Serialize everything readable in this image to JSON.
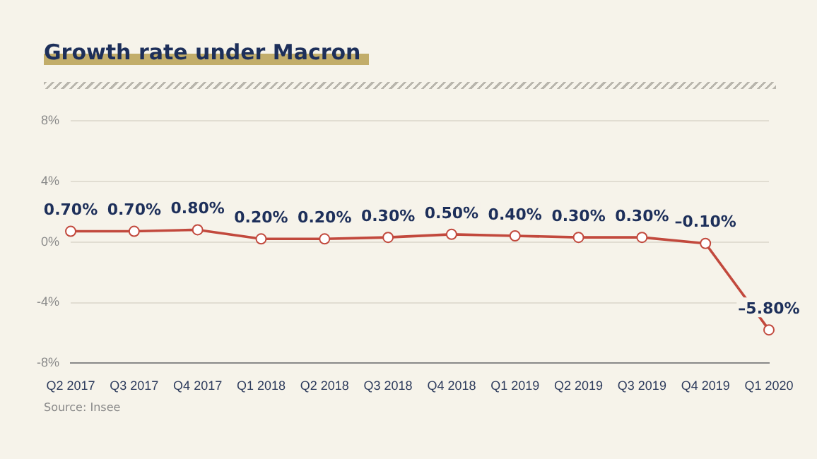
{
  "chart_data": {
    "type": "line",
    "title": "Growth rate under Macron",
    "categories": [
      "Q2 2017",
      "Q3 2017",
      "Q4 2017",
      "Q1 2018",
      "Q2 2018",
      "Q3 2018",
      "Q4 2018",
      "Q1 2019",
      "Q2 2019",
      "Q3 2019",
      "Q4 2019",
      "Q1 2020"
    ],
    "values": [
      0.7,
      0.7,
      0.8,
      0.2,
      0.2,
      0.3,
      0.5,
      0.4,
      0.3,
      0.3,
      -0.1,
      -5.8
    ],
    "value_labels": [
      "0.70%",
      "0.70%",
      "0.80%",
      "0.20%",
      "0.20%",
      "0.30%",
      "0.50%",
      "0.40%",
      "0.30%",
      "0.30%",
      "–0.10%",
      "–5.80%"
    ],
    "color": "#c2493d",
    "ylim": [
      -8,
      8
    ],
    "yticks": [
      {
        "value": -8,
        "label": "-8%"
      },
      {
        "value": -4,
        "label": "-4%"
      },
      {
        "value": 0,
        "label": "0%"
      },
      {
        "value": 4,
        "label": "4%"
      },
      {
        "value": 8,
        "label": "8%"
      }
    ],
    "grid": "y",
    "marker": "circle",
    "line_style": "solid",
    "legend": false,
    "annotations": [
      "Source: Insee"
    ]
  }
}
